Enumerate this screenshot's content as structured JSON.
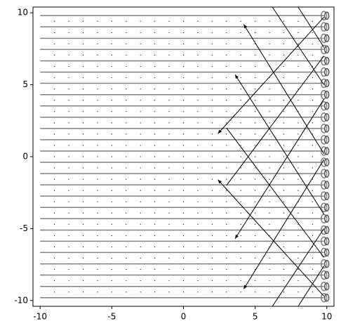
{
  "chart_data": {
    "type": "line",
    "xlim": [
      -10.5,
      10.5
    ],
    "ylim": [
      -10.4,
      10.4
    ],
    "xticks": [
      -10,
      -5,
      0,
      5,
      10
    ],
    "yticks": [
      -10,
      -5,
      0,
      5,
      10
    ],
    "line_color": "#808080",
    "segment_color": "#000000",
    "lines_y": [
      9.8,
      9.02,
      8.23,
      7.45,
      6.66,
      5.88,
      5.1,
      4.31,
      3.53,
      2.74,
      1.96,
      1.18,
      0.39,
      -0.39,
      -1.18,
      -1.96,
      -2.74,
      -3.53,
      -4.31,
      -5.1,
      -5.88,
      -6.66,
      -7.45,
      -8.23,
      -9.02,
      -9.8
    ],
    "lines_x": [
      -10,
      9.8
    ],
    "dots_x": [
      -9,
      -8,
      -7,
      -6,
      -5,
      -4,
      -3,
      -2,
      -1,
      0,
      1,
      2,
      3,
      4,
      5,
      6,
      7,
      8,
      9
    ],
    "dots_y": [
      9.41,
      8.62,
      7.84,
      7.06,
      6.27,
      5.49,
      4.7,
      3.92,
      3.14,
      2.35,
      1.57,
      0.78,
      0,
      -0.78,
      -1.57,
      -2.35,
      -3.14,
      -3.92,
      -4.7,
      -5.49,
      -6.27,
      -7.06,
      -7.84,
      -8.62,
      -9.41
    ],
    "segments": [
      {
        "x": [
          4.2,
          9.8
        ],
        "y": [
          9.2,
          0.2
        ],
        "arrow": true
      },
      {
        "x": [
          2.4,
          9.8
        ],
        "y": [
          1.6,
          9.7
        ],
        "arrow": true
      },
      {
        "x": [
          3.6,
          9.8
        ],
        "y": [
          5.7,
          -4
        ],
        "arrow": true
      },
      {
        "x": [
          2.4,
          9.8
        ],
        "y": [
          -1.6,
          -9.7
        ],
        "arrow": true
      },
      {
        "x": [
          3.6,
          9.8
        ],
        "y": [
          -5.7,
          4
        ],
        "arrow": true
      },
      {
        "x": [
          4.2,
          9.8
        ],
        "y": [
          -9.2,
          -0.2
        ],
        "arrow": true
      },
      {
        "x": [
          3,
          9.8
        ],
        "y": [
          2,
          -7
        ],
        "arrow": false
      },
      {
        "x": [
          3,
          9.8
        ],
        "y": [
          -2,
          7
        ],
        "arrow": false
      },
      {
        "x": [
          6.2,
          9.8
        ],
        "y": [
          10.4,
          5
        ],
        "arrow": false
      },
      {
        "x": [
          8,
          9.8
        ],
        "y": [
          10.4,
          7.6
        ],
        "arrow": false
      },
      {
        "x": [
          6.2,
          9.8
        ],
        "y": [
          -10.4,
          -5
        ],
        "arrow": false
      },
      {
        "x": [
          8,
          9.8
        ],
        "y": [
          -10.4,
          -7.6
        ],
        "arrow": false
      }
    ]
  }
}
